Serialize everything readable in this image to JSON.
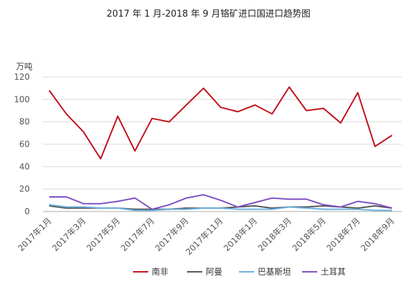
{
  "chart_data": {
    "type": "line",
    "title": "2017 年 1 月-2018 年 9 月铬矿进口国进口趋势图",
    "ylabel": "万吨",
    "xlabel": "",
    "ylim": [
      0,
      120
    ],
    "yticks": [
      0,
      20,
      40,
      60,
      80,
      100,
      120
    ],
    "grid": true,
    "legend_position": "bottom",
    "categories": [
      "2017年1月",
      "2017年2月",
      "2017年3月",
      "2017年4月",
      "2017年5月",
      "2017年6月",
      "2017年7月",
      "2017年8月",
      "2017年9月",
      "2017年10月",
      "2017年11月",
      "2017年12月",
      "2018年1月",
      "2018年2月",
      "2018年3月",
      "2018年4月",
      "2018年5月",
      "2018年6月",
      "2018年7月",
      "2018年8月",
      "2018年9月"
    ],
    "xtick_labels": [
      "2017年1月",
      "2017年3月",
      "2017年5月",
      "2017年7月",
      "2017年9月",
      "2017年11月",
      "2018年1月",
      "2018年3月",
      "2018年5月",
      "2018年7月",
      "2018年9月"
    ],
    "series": [
      {
        "name": "南非",
        "color": "#c0101a",
        "values": [
          108,
          87,
          71,
          47,
          85,
          54,
          83,
          80,
          95,
          110,
          93,
          89,
          95,
          87,
          111,
          90,
          92,
          79,
          106,
          58,
          68
        ]
      },
      {
        "name": "阿曼",
        "color": "#555555",
        "values": [
          5,
          3,
          3,
          3,
          3,
          2,
          2,
          2,
          3,
          3,
          3,
          4,
          5,
          3,
          4,
          4,
          5,
          4,
          3,
          5,
          3
        ]
      },
      {
        "name": "巴基斯坦",
        "color": "#6ab0e0",
        "values": [
          6,
          4,
          4,
          3,
          3,
          1,
          1,
          2,
          2,
          3,
          3,
          2,
          2,
          2,
          4,
          3,
          2,
          2,
          2,
          1,
          1
        ]
      },
      {
        "name": "土耳其",
        "color": "#7d4fc2",
        "values": [
          13,
          13,
          7,
          7,
          9,
          12,
          2,
          6,
          12,
          15,
          10,
          4,
          8,
          12,
          11,
          11,
          6,
          4,
          9,
          7,
          3
        ]
      }
    ]
  }
}
